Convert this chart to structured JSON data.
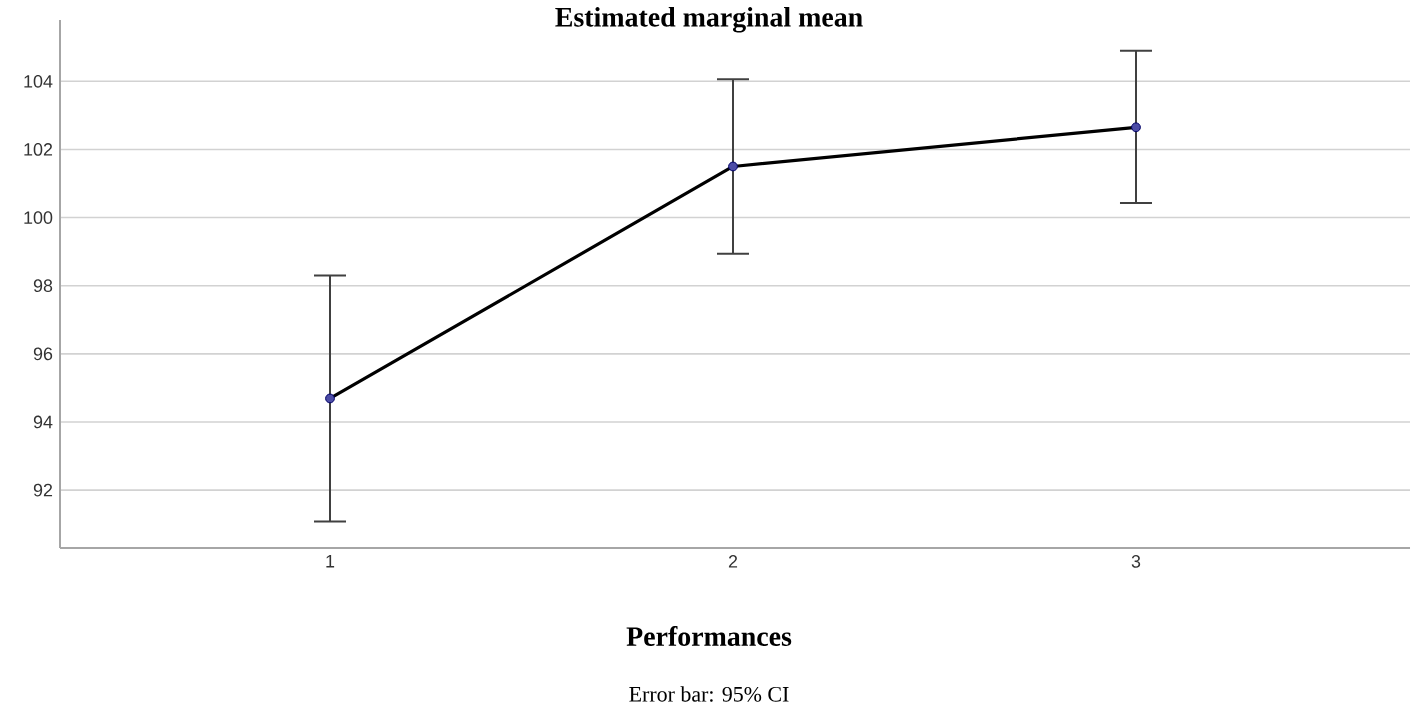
{
  "chart_data": {
    "type": "line",
    "title": "Estimated marginal mean",
    "xlabel": "Performances",
    "categories": [
      "1",
      "2",
      "3"
    ],
    "series": [
      {
        "color": "#000000",
        "values": [
          94.69,
          101.5,
          102.65
        ],
        "errors": [
          [
            91.08,
            98.3
          ],
          [
            98.94,
            104.06
          ],
          [
            100.43,
            104.9
          ]
        ]
      }
    ],
    "ylim": [
      90.3,
      105.8
    ],
    "yticks": [
      92,
      94,
      96,
      98,
      100,
      102,
      104
    ],
    "grid": "y",
    "marker": "circle",
    "line_style": "solid",
    "annotations": [
      "Error bar: 95% CI"
    ]
  }
}
